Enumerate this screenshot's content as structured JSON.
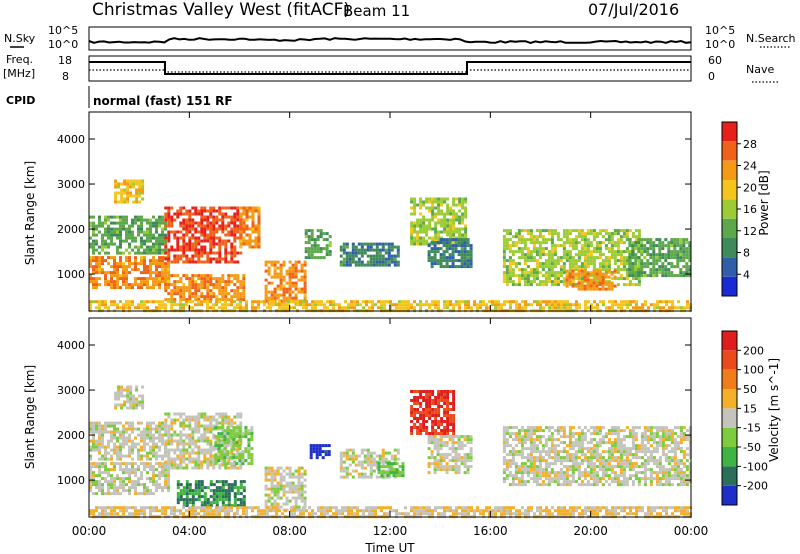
{
  "header": {
    "station": "Christmas Valley West (fitACF)",
    "beam": "Beam 11",
    "date": "07/Jul/2016"
  },
  "noise_panel": {
    "left_label": "N.Sky",
    "right_label": "N.Search",
    "tick_top": "10^5",
    "tick_bottom": "10^0"
  },
  "freq_panel": {
    "label_line1": "Freq.",
    "label_line2": "[MHz]",
    "left_ticks": [
      "18",
      "8"
    ],
    "right_ticks": [
      "60",
      "0"
    ],
    "right_label": "Nave"
  },
  "cpid": {
    "label": "CPID",
    "text": "normal (fast) 151 RF"
  },
  "x_axis": {
    "title": "Time UT",
    "ticks": [
      "00:00",
      "04:00",
      "08:00",
      "12:00",
      "16:00",
      "20:00",
      "00:00"
    ]
  },
  "colors": {
    "power": [
      "#1a2bd6",
      "#2e5fa8",
      "#3f8a5a",
      "#5ca84a",
      "#9ccc35",
      "#f5c51e",
      "#f59a14",
      "#f0621a",
      "#e8201c"
    ],
    "velocity": [
      "#1d2ec9",
      "#2b6e5a",
      "#3fb443",
      "#7dcc3e",
      "#c4c4bd",
      "#f5b02a",
      "#f07d1a",
      "#ea4a1c",
      "#e01d1d"
    ]
  },
  "chart_data": [
    {
      "type": "heatmap",
      "title": "",
      "ylabel": "Slant Range [km]",
      "xlabel": "",
      "xlim": [
        "00:00",
        "24:00"
      ],
      "ylim": [
        180,
        4600
      ],
      "yticks": [
        "1000",
        "2000",
        "3000",
        "4000"
      ],
      "colorbar": {
        "label": "Power [dB]",
        "ticks": [
          "28",
          "24",
          "20",
          "16",
          "12",
          "8",
          "4"
        ],
        "range": [
          0,
          32
        ]
      },
      "regions": [
        {
          "t0": 0.0,
          "t1": 3.2,
          "r0": 700,
          "r1": 1400,
          "value": 24
        },
        {
          "t0": 0.0,
          "t1": 3.0,
          "r0": 1500,
          "r1": 2300,
          "value": 12
        },
        {
          "t0": 1.0,
          "t1": 2.1,
          "r0": 2600,
          "r1": 3100,
          "value": 20
        },
        {
          "t0": 3.0,
          "t1": 6.0,
          "r0": 1300,
          "r1": 2500,
          "value": 28
        },
        {
          "t0": 3.0,
          "t1": 6.2,
          "r0": 450,
          "r1": 1000,
          "value": 24
        },
        {
          "t0": 6.0,
          "t1": 6.8,
          "r0": 1600,
          "r1": 2500,
          "value": 24
        },
        {
          "t0": 7.0,
          "t1": 8.6,
          "r0": 350,
          "r1": 1300,
          "value": 24
        },
        {
          "t0": 8.6,
          "t1": 9.6,
          "r0": 1400,
          "r1": 2000,
          "value": 12
        },
        {
          "t0": 10.0,
          "t1": 12.3,
          "r0": 1200,
          "r1": 1700,
          "value": 8
        },
        {
          "t0": 12.8,
          "t1": 15.0,
          "r0": 1700,
          "r1": 2700,
          "value": 16
        },
        {
          "t0": 13.5,
          "t1": 15.2,
          "r0": 1200,
          "r1": 1800,
          "value": 8
        },
        {
          "t0": 16.5,
          "t1": 22.0,
          "r0": 800,
          "r1": 2000,
          "value": 16
        },
        {
          "t0": 19.0,
          "t1": 21.0,
          "r0": 700,
          "r1": 1100,
          "value": 24
        },
        {
          "t0": 21.5,
          "t1": 24.0,
          "r0": 1000,
          "r1": 1800,
          "value": 12
        },
        {
          "t0": 0.0,
          "t1": 24.0,
          "r0": 180,
          "r1": 420,
          "value": 20
        }
      ]
    },
    {
      "type": "heatmap",
      "title": "",
      "ylabel": "Slant Range [km]",
      "xlabel": "Time UT",
      "xlim": [
        "00:00",
        "24:00"
      ],
      "ylim": [
        180,
        4600
      ],
      "yticks": [
        "1000",
        "2000",
        "3000",
        "4000"
      ],
      "colorbar": {
        "label": "Velocity [m s^-1]",
        "ticks": [
          "200",
          "100",
          "50",
          "15",
          "-15",
          "-50",
          "-100",
          "-200"
        ],
        "range": [
          -250,
          250
        ]
      },
      "regions": [
        {
          "t0": 0.0,
          "t1": 3.2,
          "r0": 700,
          "r1": 1400,
          "value": 0
        },
        {
          "t0": 0.0,
          "t1": 3.0,
          "r0": 1500,
          "r1": 2300,
          "value": 0
        },
        {
          "t0": 1.0,
          "t1": 2.1,
          "r0": 2600,
          "r1": 3100,
          "value": 0
        },
        {
          "t0": 3.0,
          "t1": 6.0,
          "r0": 1300,
          "r1": 2500,
          "value": 0
        },
        {
          "t0": 3.5,
          "t1": 6.2,
          "r0": 450,
          "r1": 1000,
          "value": -150
        },
        {
          "t0": 5.0,
          "t1": 6.5,
          "r0": 1400,
          "r1": 2200,
          "value": -60
        },
        {
          "t0": 7.0,
          "t1": 8.6,
          "r0": 350,
          "r1": 1300,
          "value": 0
        },
        {
          "t0": 8.8,
          "t1": 9.6,
          "r0": 1500,
          "r1": 1800,
          "value": -220
        },
        {
          "t0": 10.0,
          "t1": 12.3,
          "r0": 1100,
          "r1": 1700,
          "value": 0
        },
        {
          "t0": 11.5,
          "t1": 12.5,
          "r0": 1100,
          "r1": 1400,
          "value": -80
        },
        {
          "t0": 12.8,
          "t1": 14.5,
          "r0": 2000,
          "r1": 3000,
          "value": 200
        },
        {
          "t0": 13.5,
          "t1": 15.2,
          "r0": 1200,
          "r1": 2000,
          "value": 0
        },
        {
          "t0": 16.5,
          "t1": 24.0,
          "r0": 900,
          "r1": 2200,
          "value": 0
        },
        {
          "t0": 0.0,
          "t1": 24.0,
          "r0": 180,
          "r1": 420,
          "value": 30
        }
      ]
    }
  ]
}
